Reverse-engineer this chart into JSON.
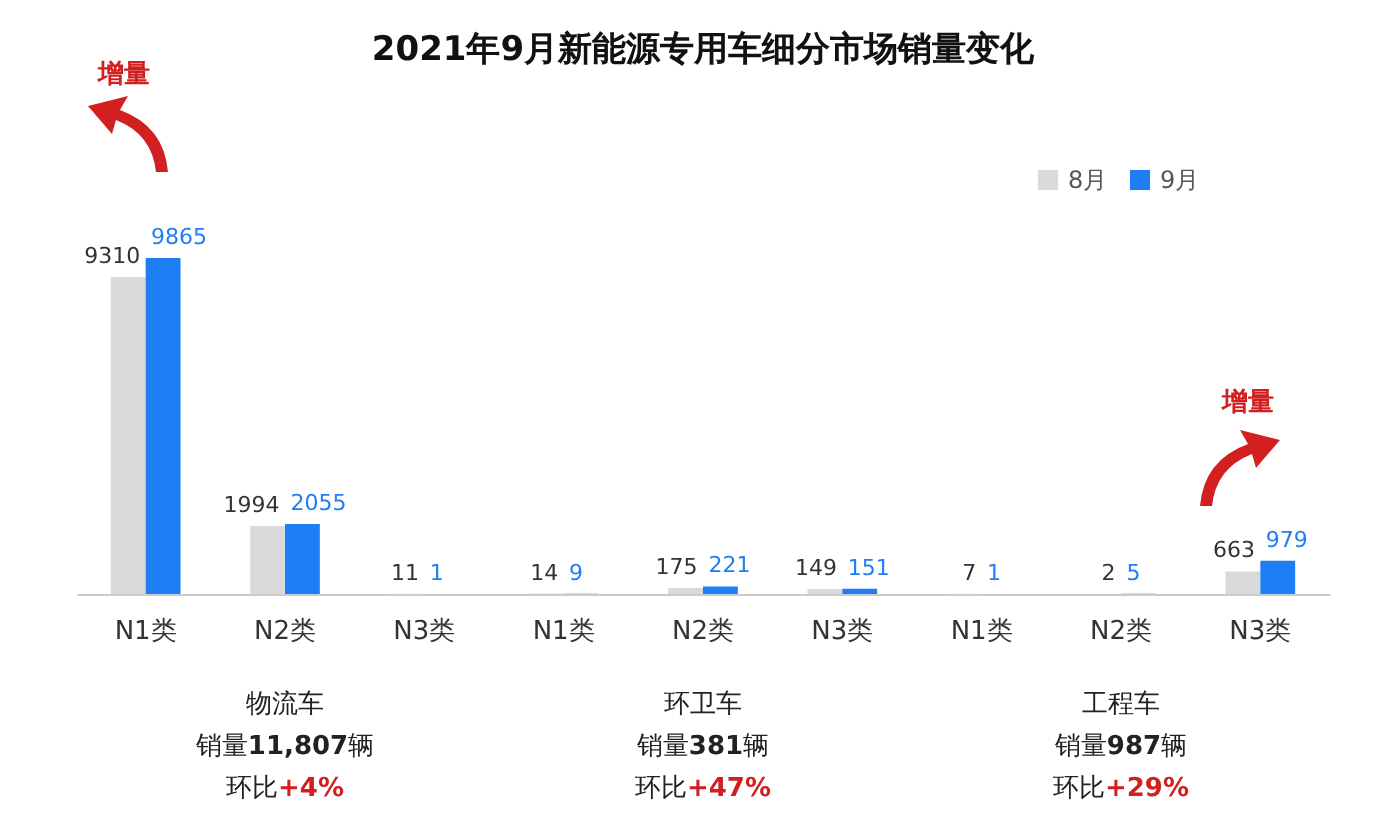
{
  "chart_data": {
    "type": "bar",
    "title": "2021年9月新能源专用车细分市场销量变化",
    "categories": [
      "N1类",
      "N2类",
      "N3类",
      "N1类",
      "N2类",
      "N3类",
      "N1类",
      "N2类",
      "N3类"
    ],
    "series": [
      {
        "name": "8月",
        "color": "#d9d9d9",
        "values": [
          9310,
          1994,
          11,
          14,
          175,
          149,
          7,
          2,
          663
        ]
      },
      {
        "name": "9月",
        "color": "#1f7ef5",
        "values": [
          9865,
          2055,
          1,
          9,
          221,
          151,
          1,
          5,
          979
        ]
      }
    ],
    "data_labels": true,
    "legend": "top right",
    "grid": false,
    "annotations": [
      "增量",
      "增量",
      "物流车",
      "销量11,807辆",
      "环比+4%",
      "环卫车",
      "销量381辆",
      "环比+47%",
      "工程车",
      "销量987辆",
      "环比+29%"
    ]
  }
}
